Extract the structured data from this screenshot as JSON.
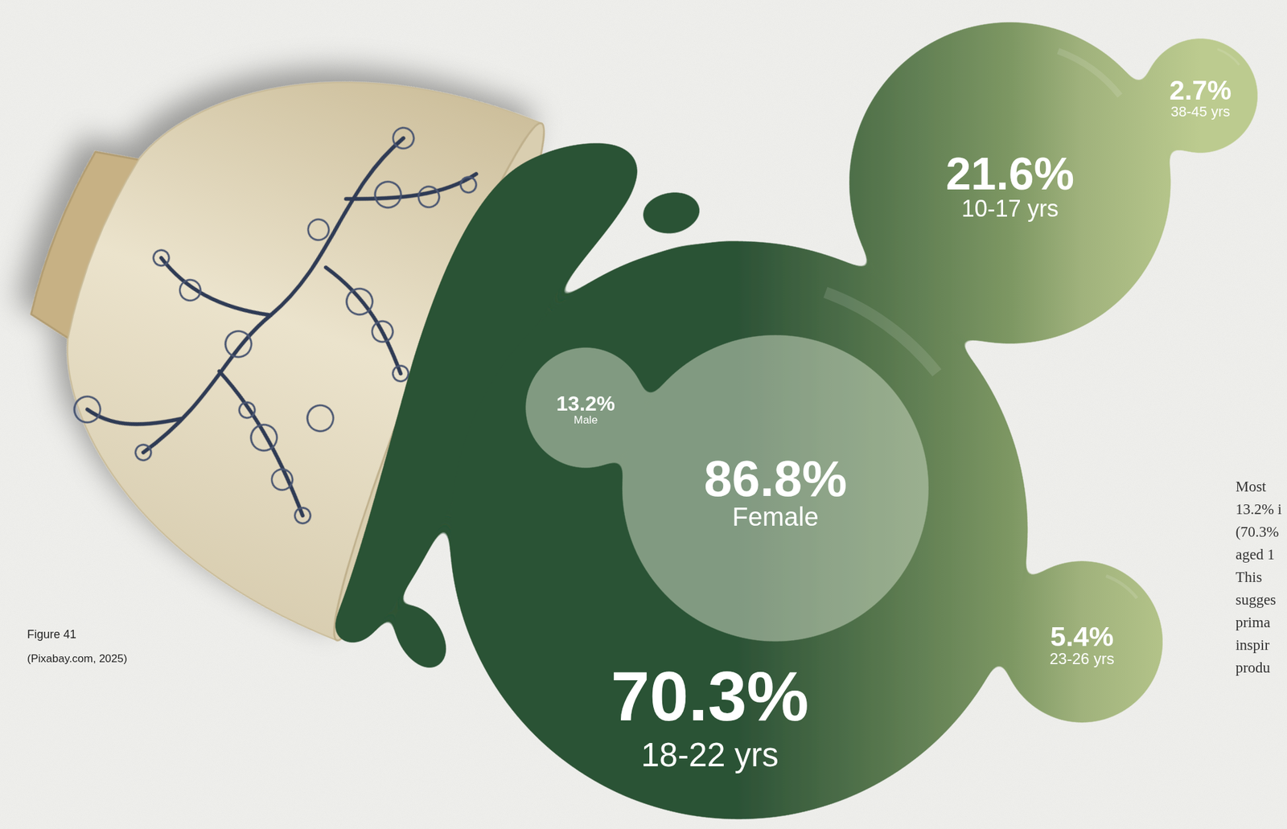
{
  "chart_data": {
    "type": "bubble",
    "data_labels": true,
    "series": [
      {
        "categories": [
          "Female",
          "Male"
        ],
        "values": [
          86.8,
          13.2
        ],
        "value_labels": [
          "86.8%",
          "13.2%"
        ],
        "color": "#c9d6bf"
      },
      {
        "categories": [
          "18-22 yrs",
          "10-17 yrs",
          "23-26 yrs",
          "38-45 yrs"
        ],
        "values": [
          70.3,
          21.6,
          5.4,
          2.7
        ],
        "value_labels": [
          "70.3%",
          "21.6%",
          "5.4%",
          "2.7%"
        ],
        "colors": [
          "#2c5236",
          "#7d9763",
          "#a0b27c",
          "#bccb8f"
        ]
      }
    ]
  },
  "figure_caption": {
    "label": "Figure 41",
    "source": "(Pixabay.com, 2025)"
  },
  "body_text_lines": [
    "Most",
    "13.2% i",
    "(70.3%",
    "aged 1",
    "This",
    "sugges",
    "prima",
    "inspir",
    "produ"
  ]
}
